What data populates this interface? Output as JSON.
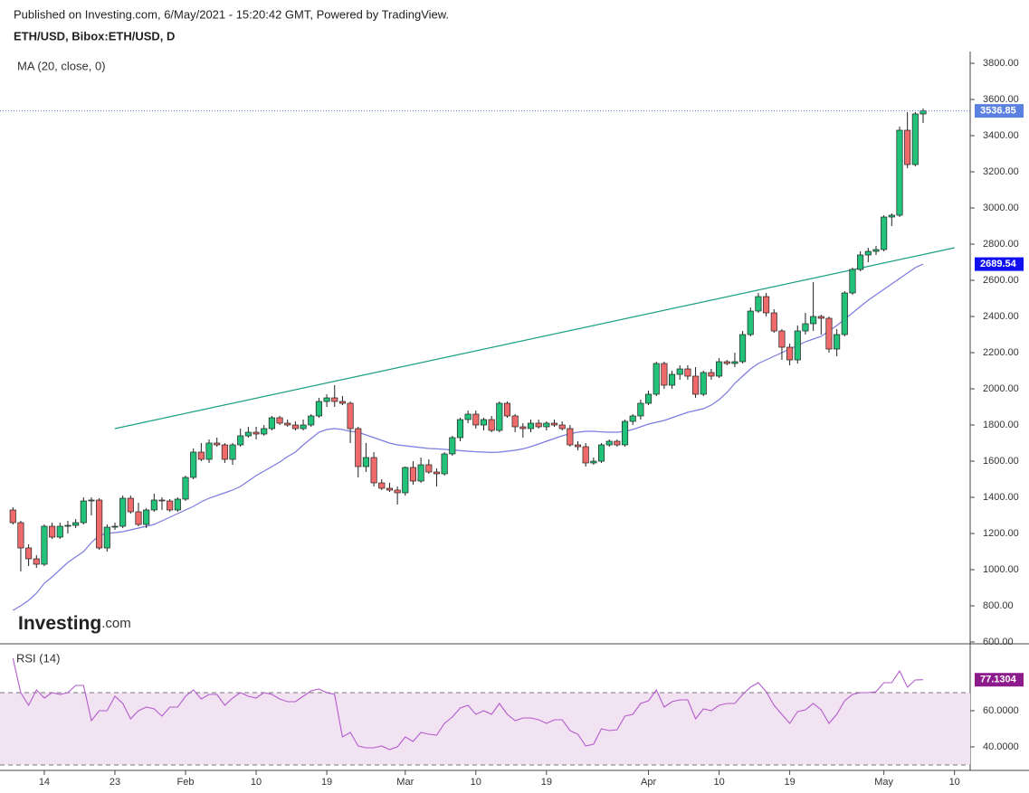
{
  "header": {
    "published": "Published on Investing.com, 6/May/2021 - 15:20:42 GMT, Powered by TradingView.",
    "symbol": "ETH/USD, Bibox:ETH/USD, D"
  },
  "logo": {
    "brand": "Investing",
    "suffix": ".com"
  },
  "chart_data": {
    "type": "candlestick",
    "x": [
      "2021-01-10",
      "2021-01-11",
      "2021-01-12",
      "2021-01-13",
      "2021-01-14",
      "2021-01-15",
      "2021-01-16",
      "2021-01-17",
      "2021-01-18",
      "2021-01-19",
      "2021-01-20",
      "2021-01-21",
      "2021-01-22",
      "2021-01-23",
      "2021-01-24",
      "2021-01-25",
      "2021-01-26",
      "2021-01-27",
      "2021-01-28",
      "2021-01-29",
      "2021-01-30",
      "2021-01-31",
      "2021-02-01",
      "2021-02-02",
      "2021-02-03",
      "2021-02-04",
      "2021-02-05",
      "2021-02-06",
      "2021-02-07",
      "2021-02-08",
      "2021-02-09",
      "2021-02-10",
      "2021-02-11",
      "2021-02-12",
      "2021-02-13",
      "2021-02-14",
      "2021-02-15",
      "2021-02-16",
      "2021-02-17",
      "2021-02-18",
      "2021-02-19",
      "2021-02-20",
      "2021-02-21",
      "2021-02-22",
      "2021-02-23",
      "2021-02-24",
      "2021-02-25",
      "2021-02-26",
      "2021-02-27",
      "2021-02-28",
      "2021-03-01",
      "2021-03-02",
      "2021-03-03",
      "2021-03-04",
      "2021-03-05",
      "2021-03-06",
      "2021-03-07",
      "2021-03-08",
      "2021-03-09",
      "2021-03-10",
      "2021-03-11",
      "2021-03-12",
      "2021-03-13",
      "2021-03-14",
      "2021-03-15",
      "2021-03-16",
      "2021-03-17",
      "2021-03-18",
      "2021-03-19",
      "2021-03-20",
      "2021-03-21",
      "2021-03-22",
      "2021-03-23",
      "2021-03-24",
      "2021-03-25",
      "2021-03-26",
      "2021-03-27",
      "2021-03-28",
      "2021-03-29",
      "2021-03-30",
      "2021-03-31",
      "2021-04-01",
      "2021-04-02",
      "2021-04-03",
      "2021-04-04",
      "2021-04-05",
      "2021-04-06",
      "2021-04-07",
      "2021-04-08",
      "2021-04-09",
      "2021-04-10",
      "2021-04-11",
      "2021-04-12",
      "2021-04-13",
      "2021-04-14",
      "2021-04-15",
      "2021-04-16",
      "2021-04-17",
      "2021-04-18",
      "2021-04-19",
      "2021-04-20",
      "2021-04-21",
      "2021-04-22",
      "2021-04-23",
      "2021-04-24",
      "2021-04-25",
      "2021-04-26",
      "2021-04-27",
      "2021-04-28",
      "2021-04-29",
      "2021-04-30",
      "2021-05-01",
      "2021-05-02",
      "2021-05-03",
      "2021-05-04",
      "2021-05-05",
      "2021-05-06"
    ],
    "candles": [
      [
        1330,
        1345,
        1250,
        1260
      ],
      [
        1260,
        1270,
        990,
        1120
      ],
      [
        1120,
        1140,
        1020,
        1060
      ],
      [
        1060,
        1080,
        1010,
        1030
      ],
      [
        1030,
        1250,
        1020,
        1240
      ],
      [
        1240,
        1260,
        1170,
        1180
      ],
      [
        1180,
        1260,
        1170,
        1240
      ],
      [
        1240,
        1270,
        1200,
        1245
      ],
      [
        1245,
        1280,
        1230,
        1260
      ],
      [
        1260,
        1400,
        1250,
        1380
      ],
      [
        1380,
        1400,
        1300,
        1385
      ],
      [
        1385,
        1395,
        1110,
        1120
      ],
      [
        1120,
        1250,
        1100,
        1235
      ],
      [
        1235,
        1260,
        1220,
        1240
      ],
      [
        1240,
        1410,
        1230,
        1395
      ],
      [
        1395,
        1410,
        1310,
        1320
      ],
      [
        1320,
        1370,
        1240,
        1250
      ],
      [
        1250,
        1340,
        1230,
        1330
      ],
      [
        1330,
        1420,
        1320,
        1385
      ],
      [
        1385,
        1400,
        1330,
        1380
      ],
      [
        1380,
        1390,
        1320,
        1330
      ],
      [
        1330,
        1400,
        1320,
        1390
      ],
      [
        1390,
        1520,
        1380,
        1510
      ],
      [
        1510,
        1670,
        1500,
        1650
      ],
      [
        1650,
        1700,
        1600,
        1610
      ],
      [
        1610,
        1720,
        1590,
        1700
      ],
      [
        1700,
        1730,
        1680,
        1690
      ],
      [
        1690,
        1700,
        1590,
        1610
      ],
      [
        1610,
        1700,
        1580,
        1690
      ],
      [
        1690,
        1780,
        1680,
        1740
      ],
      [
        1740,
        1790,
        1730,
        1760
      ],
      [
        1760,
        1790,
        1720,
        1750
      ],
      [
        1750,
        1800,
        1740,
        1780
      ],
      [
        1780,
        1850,
        1770,
        1840
      ],
      [
        1840,
        1850,
        1800,
        1810
      ],
      [
        1810,
        1830,
        1790,
        1800
      ],
      [
        1800,
        1820,
        1770,
        1780
      ],
      [
        1780,
        1830,
        1770,
        1800
      ],
      [
        1800,
        1860,
        1790,
        1850
      ],
      [
        1850,
        1950,
        1840,
        1930
      ],
      [
        1930,
        1970,
        1900,
        1950
      ],
      [
        1950,
        2020,
        1900,
        1930
      ],
      [
        1930,
        1960,
        1910,
        1920
      ],
      [
        1920,
        1930,
        1700,
        1780
      ],
      [
        1780,
        1790,
        1510,
        1570
      ],
      [
        1570,
        1700,
        1540,
        1620
      ],
      [
        1620,
        1650,
        1460,
        1480
      ],
      [
        1480,
        1500,
        1440,
        1450
      ],
      [
        1450,
        1480,
        1430,
        1440
      ],
      [
        1440,
        1460,
        1360,
        1425
      ],
      [
        1425,
        1570,
        1410,
        1565
      ],
      [
        1565,
        1600,
        1470,
        1490
      ],
      [
        1490,
        1620,
        1480,
        1580
      ],
      [
        1580,
        1610,
        1530,
        1540
      ],
      [
        1540,
        1560,
        1460,
        1530
      ],
      [
        1530,
        1650,
        1520,
        1640
      ],
      [
        1640,
        1740,
        1630,
        1730
      ],
      [
        1730,
        1840,
        1710,
        1830
      ],
      [
        1830,
        1880,
        1810,
        1860
      ],
      [
        1860,
        1880,
        1780,
        1800
      ],
      [
        1800,
        1840,
        1770,
        1830
      ],
      [
        1830,
        1850,
        1760,
        1770
      ],
      [
        1770,
        1930,
        1760,
        1920
      ],
      [
        1920,
        1930,
        1840,
        1850
      ],
      [
        1850,
        1860,
        1760,
        1790
      ],
      [
        1790,
        1810,
        1730,
        1780
      ],
      [
        1780,
        1830,
        1760,
        1810
      ],
      [
        1810,
        1830,
        1780,
        1790
      ],
      [
        1790,
        1820,
        1770,
        1810
      ],
      [
        1810,
        1830,
        1790,
        1800
      ],
      [
        1800,
        1820,
        1770,
        1780
      ],
      [
        1780,
        1800,
        1680,
        1690
      ],
      [
        1690,
        1710,
        1660,
        1680
      ],
      [
        1680,
        1700,
        1570,
        1590
      ],
      [
        1590,
        1620,
        1580,
        1600
      ],
      [
        1600,
        1700,
        1590,
        1690
      ],
      [
        1690,
        1720,
        1680,
        1710
      ],
      [
        1710,
        1720,
        1680,
        1690
      ],
      [
        1690,
        1830,
        1680,
        1820
      ],
      [
        1820,
        1860,
        1800,
        1850
      ],
      [
        1850,
        1940,
        1830,
        1920
      ],
      [
        1920,
        1990,
        1910,
        1970
      ],
      [
        1970,
        2150,
        1960,
        2140
      ],
      [
        2140,
        2150,
        2000,
        2020
      ],
      [
        2020,
        2100,
        2000,
        2080
      ],
      [
        2080,
        2130,
        2050,
        2110
      ],
      [
        2110,
        2130,
        2050,
        2070
      ],
      [
        2070,
        2120,
        1950,
        1970
      ],
      [
        1970,
        2100,
        1960,
        2090
      ],
      [
        2090,
        2110,
        2050,
        2070
      ],
      [
        2070,
        2170,
        2060,
        2150
      ],
      [
        2150,
        2160,
        2130,
        2140
      ],
      [
        2140,
        2200,
        2120,
        2150
      ],
      [
        2150,
        2320,
        2140,
        2300
      ],
      [
        2300,
        2450,
        2290,
        2430
      ],
      [
        2430,
        2530,
        2420,
        2510
      ],
      [
        2510,
        2530,
        2400,
        2420
      ],
      [
        2420,
        2440,
        2310,
        2320
      ],
      [
        2320,
        2330,
        2160,
        2230
      ],
      [
        2230,
        2250,
        2130,
        2160
      ],
      [
        2160,
        2350,
        2140,
        2320
      ],
      [
        2320,
        2420,
        2300,
        2360
      ],
      [
        2360,
        2590,
        2320,
        2400
      ],
      [
        2400,
        2410,
        2300,
        2390
      ],
      [
        2390,
        2400,
        2200,
        2220
      ],
      [
        2220,
        2330,
        2180,
        2300
      ],
      [
        2300,
        2540,
        2290,
        2530
      ],
      [
        2530,
        2670,
        2520,
        2660
      ],
      [
        2660,
        2760,
        2650,
        2740
      ],
      [
        2740,
        2780,
        2700,
        2760
      ],
      [
        2760,
        2790,
        2740,
        2770
      ],
      [
        2770,
        2960,
        2760,
        2950
      ],
      [
        2950,
        2970,
        2900,
        2960
      ],
      [
        2960,
        3450,
        2950,
        3430
      ],
      [
        3430,
        3530,
        3220,
        3240
      ],
      [
        3240,
        3530,
        3230,
        3520
      ],
      [
        3520,
        3550,
        3470,
        3536.85
      ]
    ],
    "up_color": "#22c27a",
    "down_color": "#ef6b6b",
    "last_color": "#5b80e0",
    "overlay": {
      "name": "MA (20, close, 0)",
      "color": "#7b7be0",
      "label_color": "#1010f0",
      "values": [
        775,
        800,
        830,
        870,
        925,
        960,
        1000,
        1040,
        1070,
        1100,
        1150,
        1190,
        1200,
        1205,
        1210,
        1220,
        1230,
        1240,
        1250,
        1270,
        1290,
        1310,
        1330,
        1350,
        1375,
        1395,
        1410,
        1425,
        1440,
        1460,
        1490,
        1520,
        1545,
        1570,
        1595,
        1625,
        1650,
        1690,
        1725,
        1760,
        1775,
        1780,
        1775,
        1765,
        1760,
        1745,
        1730,
        1715,
        1700,
        1690,
        1685,
        1680,
        1675,
        1670,
        1668,
        1665,
        1662,
        1658,
        1655,
        1652,
        1650,
        1648,
        1650,
        1655,
        1660,
        1668,
        1680,
        1695,
        1710,
        1725,
        1740,
        1752,
        1760,
        1765,
        1765,
        1762,
        1760,
        1760,
        1765,
        1775,
        1790,
        1805,
        1815,
        1825,
        1840,
        1855,
        1870,
        1880,
        1890,
        1910,
        1940,
        1980,
        2030,
        2070,
        2110,
        2140,
        2160,
        2180,
        2200,
        2220,
        2240,
        2260,
        2275,
        2290,
        2320,
        2350,
        2385,
        2420,
        2455,
        2490,
        2520,
        2550,
        2580,
        2610,
        2640,
        2670,
        2689.54
      ]
    },
    "trendline": {
      "x": [
        "2021-01-23",
        "2021-05-10"
      ],
      "values": [
        1780,
        2780
      ],
      "color": "#1a9e80"
    },
    "xlim": [
      "2021-01-09",
      "2021-05-13"
    ],
    "xticks": [
      {
        "value": "2021-01-14",
        "label": "14"
      },
      {
        "value": "2021-01-23",
        "label": "23"
      },
      {
        "value": "2021-02-01",
        "label": "Feb"
      },
      {
        "value": "2021-02-10",
        "label": "10"
      },
      {
        "value": "2021-02-19",
        "label": "19"
      },
      {
        "value": "2021-03-01",
        "label": "Mar"
      },
      {
        "value": "2021-03-10",
        "label": "10"
      },
      {
        "value": "2021-03-19",
        "label": "19"
      },
      {
        "value": "2021-04-01",
        "label": "Apr"
      },
      {
        "value": "2021-04-10",
        "label": "10"
      },
      {
        "value": "2021-04-19",
        "label": "19"
      },
      {
        "value": "2021-05-01",
        "label": "May"
      },
      {
        "value": "2021-05-10",
        "label": "10"
      }
    ],
    "ylim": [
      590,
      3865
    ],
    "yticks": [
      {
        "value": 600,
        "label": "600.00"
      },
      {
        "value": 800,
        "label": "800.00"
      },
      {
        "value": 1000,
        "label": "1000.00"
      },
      {
        "value": 1200,
        "label": "1200.00"
      },
      {
        "value": 1400,
        "label": "1400.00"
      },
      {
        "value": 1600,
        "label": "1600.00"
      },
      {
        "value": 1800,
        "label": "1800.00"
      },
      {
        "value": 2000,
        "label": "2000.00"
      },
      {
        "value": 2200,
        "label": "2200.00"
      },
      {
        "value": 2400,
        "label": "2400.00"
      },
      {
        "value": 2600,
        "label": "2600.00"
      },
      {
        "value": 2800,
        "label": "2800.00"
      },
      {
        "value": 3000,
        "label": "3000.00"
      },
      {
        "value": 3200,
        "label": "3200.00"
      },
      {
        "value": 3400,
        "label": "3400.00"
      },
      {
        "value": 3600,
        "label": "3600.00"
      },
      {
        "value": 3800,
        "label": "3800.00"
      }
    ],
    "indicator": {
      "type": "line",
      "name": "RSI (14)",
      "color": "#b45ccc",
      "label_color": "#8e1b8e",
      "band_color": "#f2e3f2",
      "levels": [
        30,
        70
      ],
      "ylim": [
        27,
        96.5
      ],
      "yticks": [
        {
          "value": 40,
          "label": "40.0000"
        },
        {
          "value": 60,
          "label": "60.0000"
        }
      ],
      "values": [
        89,
        70,
        63,
        71.5,
        67,
        70,
        69,
        70,
        74,
        74,
        54.5,
        60,
        60,
        68,
        64,
        55.5,
        60,
        62,
        61,
        57,
        62,
        62,
        68,
        71.5,
        66.5,
        69,
        69,
        63,
        67,
        70,
        68,
        67,
        70,
        69,
        66.5,
        65,
        65,
        68,
        71,
        72,
        70,
        69,
        45.5,
        48,
        40.5,
        39.5,
        39.5,
        40.5,
        38.5,
        40,
        45.5,
        43,
        48,
        47,
        46.5,
        53,
        56.5,
        61.5,
        63,
        58,
        60,
        58,
        64,
        58,
        54.5,
        56,
        56,
        55,
        53,
        55,
        55,
        49,
        47,
        40.5,
        41.5,
        50,
        49,
        49.5,
        57,
        58,
        64,
        65.5,
        71.5,
        62,
        65,
        66,
        66,
        55.5,
        61,
        60,
        63,
        64,
        64,
        69,
        73,
        75.5,
        70.5,
        63,
        58,
        53,
        59.5,
        60.5,
        64,
        60.5,
        53,
        58,
        65.5,
        69,
        70,
        70,
        70.5,
        75.5,
        75.5,
        82,
        73,
        77,
        77.1304
      ]
    }
  }
}
